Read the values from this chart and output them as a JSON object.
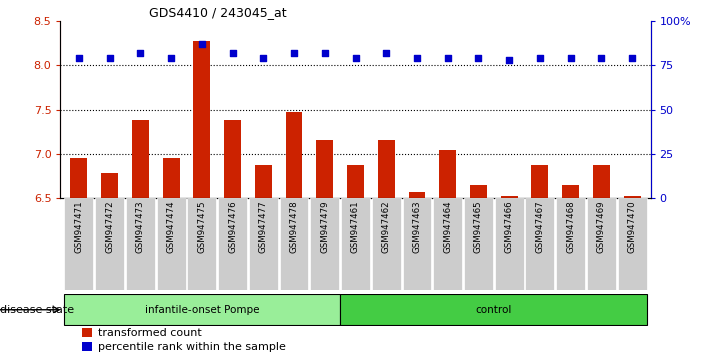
{
  "title": "GDS4410 / 243045_at",
  "samples": [
    "GSM947471",
    "GSM947472",
    "GSM947473",
    "GSM947474",
    "GSM947475",
    "GSM947476",
    "GSM947477",
    "GSM947478",
    "GSM947479",
    "GSM947461",
    "GSM947462",
    "GSM947463",
    "GSM947464",
    "GSM947465",
    "GSM947466",
    "GSM947467",
    "GSM947468",
    "GSM947469",
    "GSM947470"
  ],
  "red_values": [
    6.95,
    6.78,
    7.38,
    6.96,
    8.28,
    7.38,
    6.87,
    7.47,
    7.16,
    6.88,
    7.16,
    6.57,
    7.05,
    6.65,
    6.52,
    6.87,
    6.65,
    6.87,
    6.52
  ],
  "blue_values": [
    79,
    79,
    82,
    79,
    87,
    82,
    79,
    82,
    82,
    79,
    82,
    79,
    79,
    79,
    78,
    79,
    79,
    79,
    79
  ],
  "group1_count": 9,
  "group2_count": 10,
  "group1_label": "infantile-onset Pompe",
  "group2_label": "control",
  "disease_state_label": "disease state",
  "legend1_label": "transformed count",
  "legend2_label": "percentile rank within the sample",
  "ylim_left": [
    6.5,
    8.5
  ],
  "ylim_right": [
    0,
    100
  ],
  "yticks_left": [
    6.5,
    7.0,
    7.5,
    8.0,
    8.5
  ],
  "yticks_right": [
    0,
    25,
    50,
    75,
    100
  ],
  "ytick_labels_right": [
    "0",
    "25",
    "50",
    "75",
    "100%"
  ],
  "hlines": [
    7.0,
    7.5,
    8.0
  ],
  "bar_color": "#cc2200",
  "dot_color": "#0000cc",
  "group1_bg": "#99ee99",
  "group2_bg": "#44cc44",
  "xticklabel_bg": "#cccccc",
  "fig_width": 7.11,
  "fig_height": 3.54,
  "bar_baseline": 6.5
}
